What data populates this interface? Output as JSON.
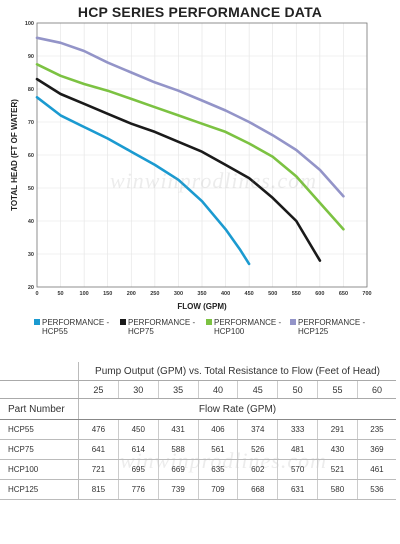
{
  "chart_data": {
    "type": "line",
    "title": "HCP SERIES PERFORMANCE DATA",
    "xlabel": "FLOW (GPM)",
    "ylabel": "TOTAL HEAD (FT OF WATER)",
    "xlim": [
      0,
      700
    ],
    "ylim": [
      20,
      100
    ],
    "xticks": [
      0,
      50,
      100,
      150,
      200,
      250,
      300,
      350,
      400,
      450,
      500,
      550,
      600,
      650,
      700
    ],
    "yticks": [
      20,
      30,
      40,
      50,
      60,
      70,
      80,
      90,
      100
    ],
    "grid": true,
    "legend_position": "bottom",
    "series": [
      {
        "name": "PERFORMANCE - HCP55",
        "color": "#1b9ad0",
        "x": [
          0,
          50,
          100,
          150,
          200,
          250,
          300,
          350,
          400,
          430,
          450
        ],
        "y": [
          77.5,
          72,
          68.5,
          65,
          61,
          57,
          52.5,
          46,
          37.5,
          31.5,
          27
        ]
      },
      {
        "name": "PERFORMANCE - HCP75",
        "color": "#1a1a1a",
        "x": [
          0,
          50,
          100,
          150,
          200,
          250,
          300,
          350,
          400,
          450,
          500,
          550,
          600
        ],
        "y": [
          83,
          78.5,
          75.5,
          72.5,
          69.5,
          67,
          64,
          61,
          57,
          53,
          47,
          40,
          28
        ]
      },
      {
        "name": "PERFORMANCE - HCP100",
        "color": "#7cc242",
        "x": [
          0,
          50,
          100,
          150,
          200,
          250,
          300,
          350,
          400,
          450,
          500,
          550,
          600,
          650
        ],
        "y": [
          87.5,
          84,
          81.5,
          79.5,
          77,
          74.5,
          72,
          69.5,
          67,
          63.5,
          59.5,
          53.5,
          45.5,
          37.5
        ]
      },
      {
        "name": "PERFORMANCE - HCP125",
        "color": "#9394c8",
        "x": [
          0,
          50,
          100,
          150,
          200,
          250,
          300,
          350,
          400,
          450,
          500,
          550,
          600,
          650
        ],
        "y": [
          95.5,
          94,
          91.5,
          88,
          85,
          82,
          79.5,
          76.5,
          73.5,
          70,
          66,
          61.5,
          55.5,
          47.5
        ]
      }
    ]
  },
  "legend": [
    {
      "line1": "PERFORMANCE -",
      "line2": "HCP55",
      "color": "#1b9ad0"
    },
    {
      "line1": "PERFORMANCE -",
      "line2": "HCP75",
      "color": "#1a1a1a"
    },
    {
      "line1": "PERFORMANCE -",
      "line2": "HCP100",
      "color": "#7cc242"
    },
    {
      "line1": "PERFORMANCE -",
      "line2": "HCP125",
      "color": "#9394c8"
    }
  ],
  "watermark": "winwinprodlines.com",
  "table": {
    "header": "Pump Output (GPM) vs. Total Resistance to Flow (Feet of Head)",
    "heads": [
      "25",
      "30",
      "35",
      "40",
      "45",
      "50",
      "55",
      "60"
    ],
    "part_label": "Part Number",
    "rate_label": "Flow Rate (GPM)",
    "rows": [
      {
        "part": "HCP55",
        "values": [
          "476",
          "450",
          "431",
          "406",
          "374",
          "333",
          "291",
          "235"
        ]
      },
      {
        "part": "HCP75",
        "values": [
          "641",
          "614",
          "588",
          "561",
          "526",
          "481",
          "430",
          "369"
        ]
      },
      {
        "part": "HCP100",
        "values": [
          "721",
          "695",
          "669",
          "635",
          "602",
          "570",
          "521",
          "461"
        ]
      },
      {
        "part": "HCP125",
        "values": [
          "815",
          "776",
          "739",
          "709",
          "668",
          "631",
          "580",
          "536"
        ]
      }
    ]
  }
}
